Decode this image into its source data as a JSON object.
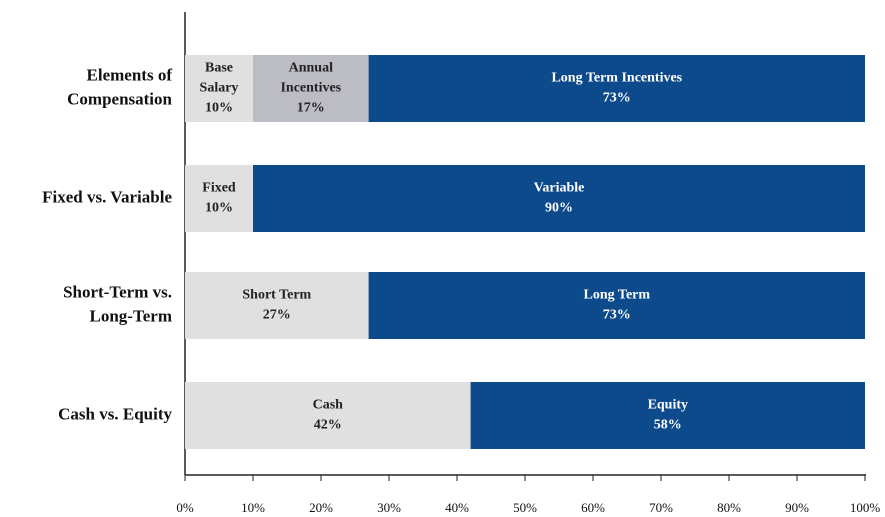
{
  "chart_data": {
    "type": "stacked-barh",
    "bars": [
      {
        "category": [
          "Elements of",
          "Compensation"
        ],
        "segments": [
          {
            "name": [
              "Base",
              "Salary"
            ],
            "value": 10,
            "value_label": "10%",
            "color": "#e0e0e0"
          },
          {
            "name": [
              "Annual",
              "Incentives"
            ],
            "value": 17,
            "value_label": "17%",
            "color": "#bcbcc4"
          },
          {
            "name": [
              "Long Term Incentives"
            ],
            "value": 73,
            "value_label": "73%",
            "color": "#0d4a8c"
          }
        ]
      },
      {
        "category": [
          "Fixed vs. Variable"
        ],
        "segments": [
          {
            "name": [
              "Fixed"
            ],
            "value": 10,
            "value_label": "10%",
            "color": "#e0e0e0"
          },
          {
            "name": [
              "Variable"
            ],
            "value": 90,
            "value_label": "90%",
            "color": "#0d4a8c"
          }
        ]
      },
      {
        "category": [
          "Short-Term vs.",
          "Long-Term"
        ],
        "segments": [
          {
            "name": [
              "Short Term"
            ],
            "value": 27,
            "value_label": "27%",
            "color": "#e0e0e0"
          },
          {
            "name": [
              "Long Term"
            ],
            "value": 73,
            "value_label": "73%",
            "color": "#0d4a8c"
          }
        ]
      },
      {
        "category": [
          "Cash vs. Equity"
        ],
        "segments": [
          {
            "name": [
              "Cash"
            ],
            "value": 42,
            "value_label": "42%",
            "color": "#e0e0e0"
          },
          {
            "name": [
              "Equity"
            ],
            "value": 58,
            "value_label": "58%",
            "color": "#0d4a8c"
          }
        ]
      }
    ],
    "xlim": [
      0,
      100
    ],
    "xticks": [
      {
        "value": 0,
        "label": "0%"
      },
      {
        "value": 10,
        "label": "10%"
      },
      {
        "value": 20,
        "label": "20%"
      },
      {
        "value": 30,
        "label": "30%"
      },
      {
        "value": 40,
        "label": "40%"
      },
      {
        "value": 50,
        "label": "50%"
      },
      {
        "value": 60,
        "label": "60%"
      },
      {
        "value": 70,
        "label": "70%"
      },
      {
        "value": 80,
        "label": "80%"
      },
      {
        "value": 90,
        "label": "90%"
      },
      {
        "value": 100,
        "label": "100%"
      }
    ]
  }
}
